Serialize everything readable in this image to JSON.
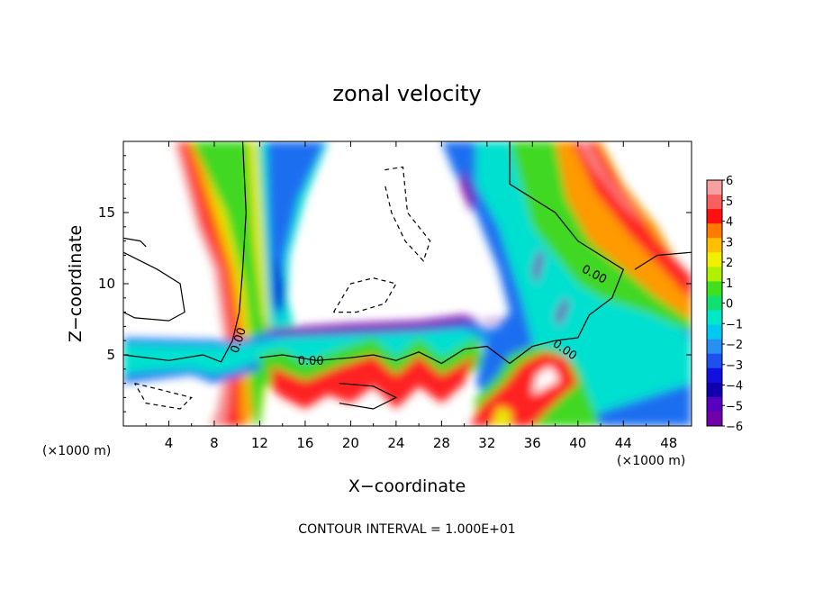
{
  "chart_data": {
    "type": "heatmap",
    "title": "zonal velocity",
    "xlabel": "X−coordinate",
    "ylabel": "Z−coordinate",
    "x_unit_left": "(×1000 m)",
    "x_unit_right": "(×1000 m)",
    "xlim": [
      0,
      50
    ],
    "ylim": [
      0,
      20
    ],
    "xticks": [
      "4",
      "8",
      "12",
      "16",
      "20",
      "24",
      "28",
      "32",
      "36",
      "40",
      "44",
      "48"
    ],
    "yticks": [
      "5",
      "10",
      "15"
    ],
    "colorbar": {
      "levels": [
        "6",
        "5",
        "4",
        "3",
        "2",
        "1",
        "0",
        "−1",
        "−2",
        "−3",
        "−4",
        "−5",
        "−6"
      ],
      "range": [
        -6,
        6
      ]
    },
    "contour_labels": [
      "0.00",
      "0.00",
      "0.00",
      "0.00"
    ],
    "footnote": "CONTOUR INTERVAL = 1.000E+01",
    "colors": {
      "max": "#f59090",
      "red": "#ff2020",
      "orange": "#ff9a00",
      "yellow": "#e8e800",
      "green": "#40d820",
      "cyan": "#00e0d0",
      "blue": "#1e6ef0",
      "dark_blue": "#0000d0",
      "min": "#7800b0"
    }
  }
}
